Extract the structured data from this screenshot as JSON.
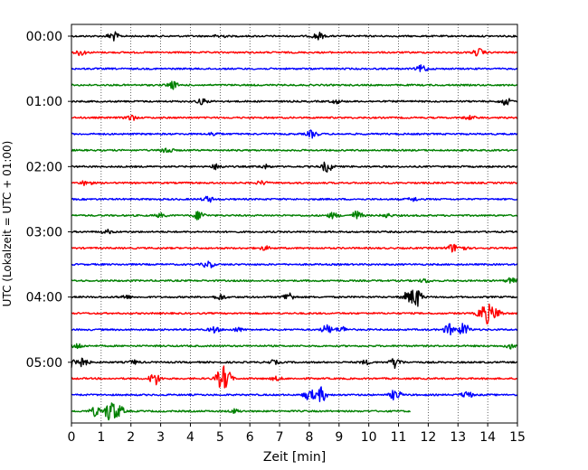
{
  "chart_data": {
    "type": "line",
    "title": "",
    "xlabel": "Zeit  [min]",
    "ylabel": "UTC (Lokalzeit = UTC + 01:00)",
    "xlim": [
      0,
      15
    ],
    "x_ticks": [
      0,
      1,
      2,
      3,
      4,
      5,
      6,
      7,
      8,
      9,
      10,
      11,
      12,
      13,
      14,
      15
    ],
    "y_tick_labels": [
      "00:00",
      "01:00",
      "02:00",
      "03:00",
      "04:00",
      "05:00"
    ],
    "trace_colors": [
      "#000000",
      "#ff0000",
      "#0000ff",
      "#008000"
    ],
    "trace_count": 24,
    "minutes_per_trace": 15,
    "grid": "vertical-dotted",
    "traces": [
      {
        "start": "00:00",
        "color": "#000000",
        "end_min": 15,
        "events": [
          [
            1.4,
            5
          ],
          [
            5.0,
            2
          ],
          [
            8.3,
            4
          ]
        ]
      },
      {
        "start": "00:15",
        "color": "#ff0000",
        "end_min": 15,
        "events": [
          [
            0.3,
            3
          ],
          [
            13.7,
            4
          ]
        ]
      },
      {
        "start": "00:30",
        "color": "#0000ff",
        "end_min": 15,
        "events": [
          [
            11.8,
            4
          ]
        ]
      },
      {
        "start": "00:45",
        "color": "#008000",
        "end_min": 15,
        "events": [
          [
            3.4,
            4
          ]
        ]
      },
      {
        "start": "01:00",
        "color": "#000000",
        "end_min": 15,
        "events": [
          [
            4.4,
            3
          ],
          [
            8.9,
            2
          ],
          [
            14.6,
            4
          ]
        ]
      },
      {
        "start": "01:15",
        "color": "#ff0000",
        "end_min": 15,
        "events": [
          [
            2.0,
            3
          ],
          [
            13.4,
            2
          ]
        ]
      },
      {
        "start": "01:30",
        "color": "#0000ff",
        "end_min": 15,
        "events": [
          [
            4.8,
            2
          ],
          [
            8.1,
            4
          ]
        ]
      },
      {
        "start": "01:45",
        "color": "#008000",
        "end_min": 15,
        "events": [
          [
            3.2,
            4
          ]
        ]
      },
      {
        "start": "02:00",
        "color": "#000000",
        "end_min": 15,
        "events": [
          [
            4.9,
            3
          ],
          [
            6.5,
            2
          ],
          [
            8.6,
            6
          ]
        ]
      },
      {
        "start": "02:15",
        "color": "#ff0000",
        "end_min": 15,
        "events": [
          [
            0.5,
            3
          ],
          [
            6.4,
            2
          ]
        ]
      },
      {
        "start": "02:30",
        "color": "#0000ff",
        "end_min": 15,
        "events": [
          [
            4.6,
            3
          ],
          [
            11.5,
            2
          ]
        ]
      },
      {
        "start": "02:45",
        "color": "#008000",
        "end_min": 15,
        "events": [
          [
            3.0,
            2
          ],
          [
            4.3,
            5
          ],
          [
            8.8,
            3
          ],
          [
            9.6,
            5
          ],
          [
            10.6,
            2
          ]
        ]
      },
      {
        "start": "03:00",
        "color": "#000000",
        "end_min": 15,
        "events": [
          [
            1.2,
            2
          ]
        ]
      },
      {
        "start": "03:15",
        "color": "#ff0000",
        "end_min": 15,
        "events": [
          [
            6.5,
            2
          ],
          [
            12.8,
            4
          ],
          [
            13.1,
            3
          ]
        ]
      },
      {
        "start": "03:30",
        "color": "#0000ff",
        "end_min": 15,
        "events": [
          [
            4.6,
            4
          ]
        ]
      },
      {
        "start": "03:45",
        "color": "#008000",
        "end_min": 15,
        "events": [
          [
            11.9,
            2
          ],
          [
            14.8,
            3
          ]
        ]
      },
      {
        "start": "04:00",
        "color": "#000000",
        "end_min": 15,
        "events": [
          [
            1.8,
            2
          ],
          [
            5.0,
            3
          ],
          [
            7.3,
            5
          ],
          [
            11.3,
            5
          ],
          [
            11.6,
            11
          ]
        ]
      },
      {
        "start": "04:15",
        "color": "#ff0000",
        "end_min": 15,
        "events": [
          [
            13.8,
            5
          ],
          [
            14.0,
            9
          ],
          [
            14.3,
            5
          ]
        ]
      },
      {
        "start": "04:30",
        "color": "#0000ff",
        "end_min": 15,
        "events": [
          [
            4.8,
            3
          ],
          [
            5.6,
            2
          ],
          [
            8.6,
            5
          ],
          [
            9.1,
            3
          ],
          [
            12.7,
            6
          ],
          [
            13.2,
            7
          ]
        ]
      },
      {
        "start": "04:45",
        "color": "#008000",
        "end_min": 15,
        "events": [
          [
            0.2,
            3
          ],
          [
            14.8,
            3
          ]
        ]
      },
      {
        "start": "05:00",
        "color": "#000000",
        "end_min": 15,
        "events": [
          [
            0.1,
            8
          ],
          [
            0.4,
            4
          ],
          [
            2.1,
            2
          ],
          [
            6.8,
            2
          ],
          [
            9.9,
            2
          ],
          [
            10.9,
            6
          ]
        ]
      },
      {
        "start": "05:15",
        "color": "#ff0000",
        "end_min": 15,
        "events": [
          [
            2.8,
            7
          ],
          [
            5.0,
            7
          ],
          [
            5.2,
            11
          ],
          [
            6.9,
            2
          ]
        ]
      },
      {
        "start": "05:30",
        "color": "#0000ff",
        "end_min": 15,
        "events": [
          [
            8.0,
            6
          ],
          [
            8.4,
            8
          ],
          [
            10.9,
            6
          ],
          [
            13.3,
            4
          ]
        ]
      },
      {
        "start": "05:45",
        "color": "#008000",
        "end_min": 11.4,
        "events": [
          [
            0.8,
            5
          ],
          [
            1.3,
            12
          ],
          [
            1.6,
            6
          ],
          [
            5.5,
            2
          ]
        ]
      }
    ]
  }
}
